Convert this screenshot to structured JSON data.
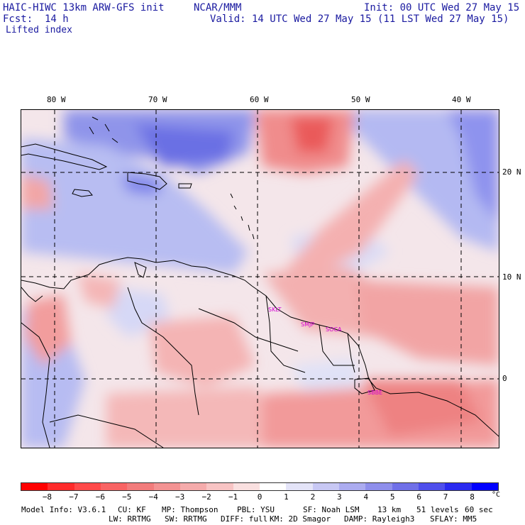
{
  "header": {
    "model": "HAIC-HIWC 13km ARW-GFS init",
    "org": "NCAR/MMM",
    "init": "Init: 00 UTC Wed 27 May 15",
    "fcst": "Fcst:  14 h",
    "valid": "Valid: 14 UTC Wed 27 May 15 (11 LST Wed 27 May 15)",
    "field": "Lifted index"
  },
  "map": {
    "lon_labels": [
      "80 W",
      "70 W",
      "60 W",
      "50 W",
      "40 W"
    ],
    "lat_labels": [
      "20 N",
      "10 N",
      "0"
    ],
    "cities": [
      "SKLT",
      "SMJP",
      "SOCA",
      "SBBE"
    ]
  },
  "colorbar": {
    "unit": "°C",
    "ticks": [
      "-8",
      "-7",
      "-6",
      "-5",
      "-4",
      "-3",
      "-2",
      "-1",
      "0",
      "1",
      "2",
      "3",
      "4",
      "5",
      "6",
      "7",
      "8"
    ],
    "colors": [
      "#ff0000",
      "#ff2b2b",
      "#ff4a4a",
      "#f86464",
      "#f27c7c",
      "#f39393",
      "#f5abab",
      "#f8c4c4",
      "#fae0e0",
      "#ffffff",
      "#e4e4f8",
      "#c8c8f4",
      "#acacf0",
      "#8f8fec",
      "#7070e8",
      "#4f4fec",
      "#2a2af0",
      "#0000ff"
    ]
  },
  "footer": {
    "line1_left": "Model Info: V3.6.1",
    "cu": "CU: KF",
    "mp": "MP: Thompson",
    "pbl": "PBL: YSU",
    "sf": "SF: Noah LSM",
    "res": "13 km",
    "levels": "51 levels",
    "dt": "60 sec",
    "lw": "LW: RRTMG",
    "sw": "SW: RRTMG",
    "diff": "DIFF: full",
    "km": "KM: 2D Smagor",
    "damp": "DAMP: Rayleigh3",
    "sflay": "SFLAY: MM5"
  }
}
